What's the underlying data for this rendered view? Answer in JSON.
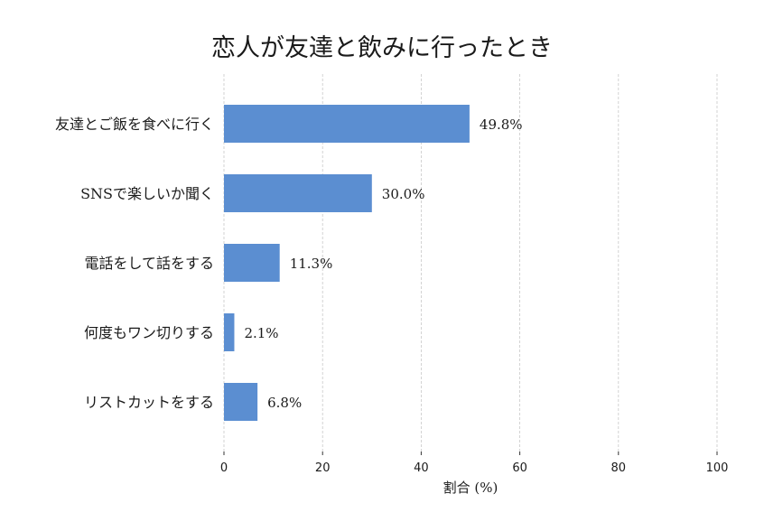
{
  "chart_data": {
    "type": "bar",
    "orientation": "horizontal",
    "title": "恋人が友達と飲みに行ったとき",
    "xlabel": "割合 (%)",
    "ylabel": "",
    "categories": [
      "友達とご飯を食べに行く",
      "SNSで楽しいか聞く",
      "電話をして話をする",
      "何度もワン切りする",
      "リストカットをする"
    ],
    "values": [
      49.8,
      30.0,
      11.3,
      2.1,
      6.8
    ],
    "value_labels": [
      "49.8%",
      "30.0%",
      "11.3%",
      "2.1%",
      "6.8%"
    ],
    "xlim": [
      0,
      100
    ],
    "xticks": [
      0,
      20,
      40,
      60,
      80,
      100
    ],
    "xtick_labels": [
      "0",
      "20",
      "40",
      "60",
      "80",
      "100"
    ],
    "grid": "vertical dashed",
    "bar_color": "#5b8ed1"
  }
}
